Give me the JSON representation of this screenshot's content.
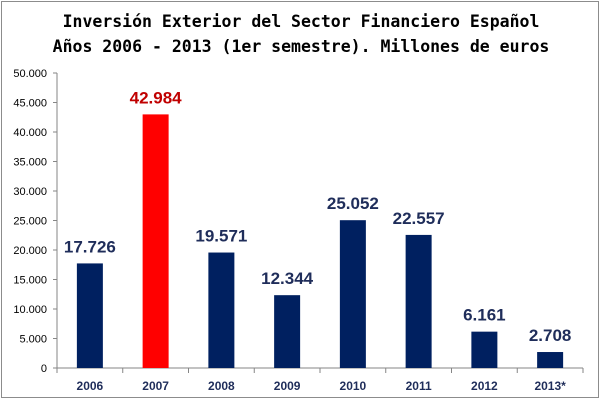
{
  "chart_data": {
    "type": "bar",
    "title_line1": "Inversión Exterior del Sector Financiero Español",
    "title_line2": "Años 2006 - 2013 (1er semestre). Millones de euros",
    "categories": [
      "2006",
      "2007",
      "2008",
      "2009",
      "2010",
      "2011",
      "2012",
      "2013*"
    ],
    "values": [
      17726,
      42984,
      19571,
      12344,
      25052,
      22557,
      6161,
      2708
    ],
    "value_labels": [
      "17.726",
      "42.984",
      "19.571",
      "12.344",
      "25.052",
      "22.557",
      "6.161",
      "2.708"
    ],
    "highlight_index": 1,
    "ylim": [
      0,
      50000
    ],
    "yticks": [
      0,
      5000,
      10000,
      15000,
      20000,
      25000,
      30000,
      35000,
      40000,
      45000,
      50000
    ],
    "ytick_labels": [
      "0",
      "5.000",
      "10.000",
      "15.000",
      "20.000",
      "25.000",
      "30.000",
      "35.000",
      "40.000",
      "45.000",
      "50.000"
    ],
    "grid": false,
    "xlabel": "",
    "ylabel": "",
    "colors": {
      "bar": "#002060",
      "highlight_bar": "#ff0000",
      "label": "#1f2d5a",
      "highlight_label": "#c00000",
      "axis": "#868686"
    }
  }
}
